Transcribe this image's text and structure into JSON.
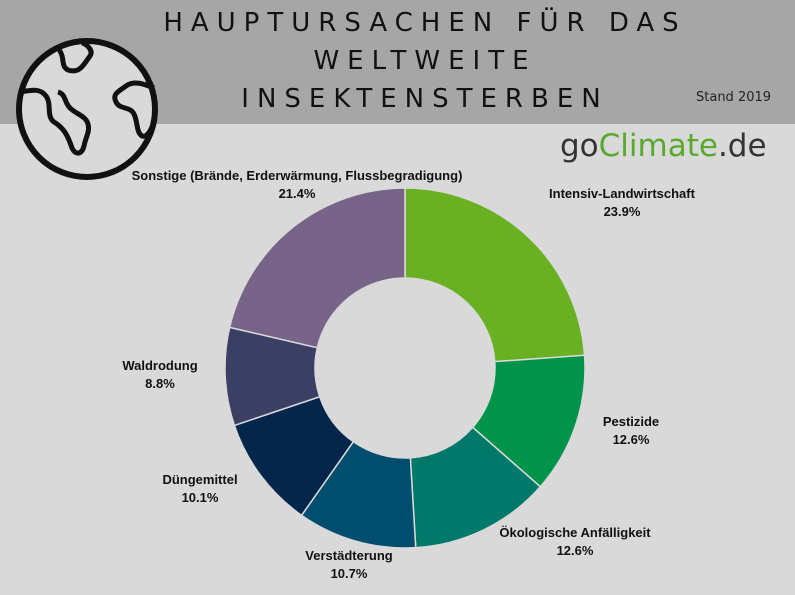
{
  "header": {
    "title_lines": [
      "HAUPTURSACHEN FÜR DAS",
      "WELTWEITE",
      "INSEKTENSTERBEN"
    ],
    "stand": "Stand 2019",
    "icon": "globe-icon"
  },
  "brand": {
    "prefix": "go",
    "highlight": "Climate",
    "suffix": ".de",
    "highlight_color": "#5aa92f"
  },
  "chart_data": {
    "type": "pie",
    "variant": "donut",
    "categories": [
      "Intensiv-Landwirtschaft",
      "Pestizide",
      "Ökologische Anfälligkeit",
      "Verstädterung",
      "Düngemittel",
      "Waldrodung",
      "Sonstige (Brände, Erderwärmung, Flussbegradigung)"
    ],
    "values": [
      23.9,
      12.6,
      12.6,
      10.7,
      10.1,
      8.8,
      21.4
    ],
    "value_labels": [
      "23.9%",
      "12.6%",
      "12.6%",
      "10.7%",
      "10.1%",
      "8.8%",
      "21.4%"
    ],
    "colors": [
      "#6ab023",
      "#00934a",
      "#00796b",
      "#004d6e",
      "#03264a",
      "#3b3f64",
      "#786489"
    ],
    "legend": "none"
  }
}
